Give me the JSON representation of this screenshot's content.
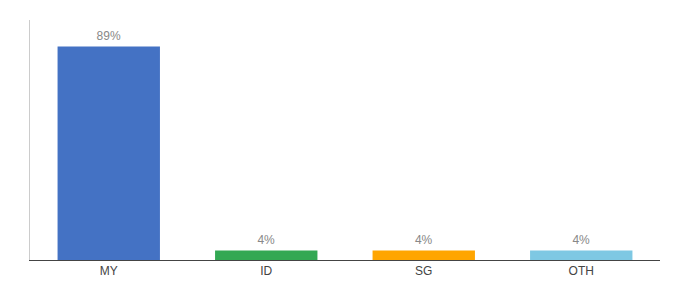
{
  "chart_data": {
    "type": "bar",
    "categories": [
      "MY",
      "ID",
      "SG",
      "OTH"
    ],
    "values": [
      89,
      4,
      4,
      4
    ],
    "value_labels": [
      "89%",
      "4%",
      "4%",
      "4%"
    ],
    "colors": [
      "#4472C4",
      "#33A853",
      "#FFA500",
      "#7EC8E3"
    ],
    "ylim": [
      0,
      100
    ],
    "data_labels": true,
    "tick_labels": "x",
    "grid": false
  }
}
